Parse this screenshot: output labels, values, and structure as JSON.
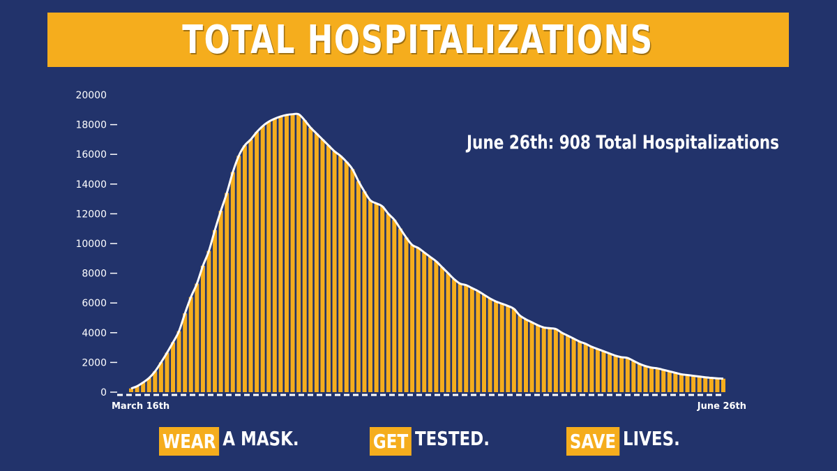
{
  "title": "TOTAL HOSPITALIZATIONS",
  "annotation": "June 26th: 908 Total Hospitalizations",
  "footer": {
    "items": [
      {
        "highlight": "WEAR",
        "rest": "A MASK."
      },
      {
        "highlight": "GET",
        "rest": "TESTED."
      },
      {
        "highlight": "SAVE",
        "rest": "LIVES."
      }
    ]
  },
  "colors": {
    "background": "#22336b",
    "accent": "#f5ad1d",
    "text": "#ffffff"
  },
  "chart_data": {
    "type": "bar",
    "x_start_label": "March 16th",
    "x_end_label": "June 26th",
    "ylim": [
      0,
      20000
    ],
    "yticks": [
      0,
      2000,
      4000,
      6000,
      8000,
      10000,
      12000,
      14000,
      16000,
      18000,
      20000
    ],
    "values": [
      250,
      400,
      650,
      950,
      1400,
      2000,
      2650,
      3350,
      4100,
      5300,
      6400,
      7300,
      8500,
      9500,
      10900,
      12200,
      13400,
      14800,
      15900,
      16600,
      17000,
      17500,
      17900,
      18200,
      18400,
      18550,
      18650,
      18700,
      18700,
      18300,
      17800,
      17400,
      17000,
      16600,
      16200,
      15900,
      15500,
      15000,
      14200,
      13500,
      12900,
      12700,
      12500,
      12000,
      11600,
      11000,
      10400,
      9900,
      9700,
      9400,
      9100,
      8800,
      8400,
      8000,
      7600,
      7300,
      7200,
      7000,
      6800,
      6550,
      6300,
      6100,
      5950,
      5800,
      5600,
      5150,
      4900,
      4700,
      4500,
      4350,
      4300,
      4250,
      4000,
      3800,
      3600,
      3400,
      3250,
      3050,
      2900,
      2750,
      2600,
      2450,
      2350,
      2300,
      2100,
      1900,
      1750,
      1650,
      1600,
      1500,
      1400,
      1300,
      1200,
      1150,
      1100,
      1050,
      1000,
      960,
      930,
      908
    ]
  }
}
